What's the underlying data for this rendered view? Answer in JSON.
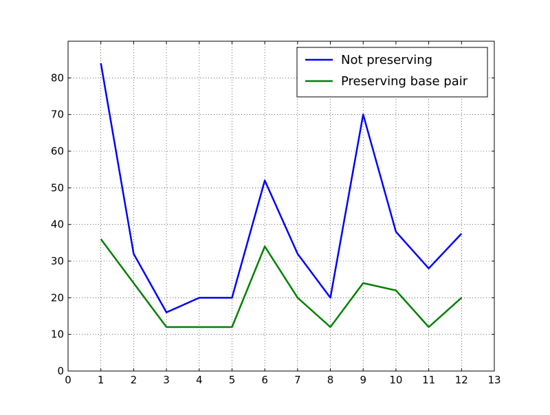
{
  "chart_data": {
    "type": "line",
    "title": "",
    "xlabel": "",
    "ylabel": "",
    "xlim": [
      0,
      13
    ],
    "ylim": [
      0,
      90
    ],
    "xticks": [
      0,
      1,
      2,
      3,
      4,
      5,
      6,
      7,
      8,
      9,
      10,
      11,
      12,
      13
    ],
    "yticks": [
      0,
      10,
      20,
      30,
      40,
      50,
      60,
      70,
      80
    ],
    "grid": true,
    "legend_position": "top-right",
    "x": [
      1,
      2,
      3,
      4,
      5,
      6,
      7,
      8,
      9,
      10,
      11,
      12
    ],
    "series": [
      {
        "name": "Not preserving",
        "color": "#0000ff",
        "values": [
          84,
          32,
          16,
          20,
          20,
          52,
          32,
          20,
          70,
          38,
          28,
          37.5
        ]
      },
      {
        "name": "Preserving base pair",
        "color": "#008000",
        "values": [
          36,
          24,
          12,
          12,
          12,
          34,
          20,
          12,
          24,
          22,
          12,
          20
        ]
      }
    ]
  }
}
